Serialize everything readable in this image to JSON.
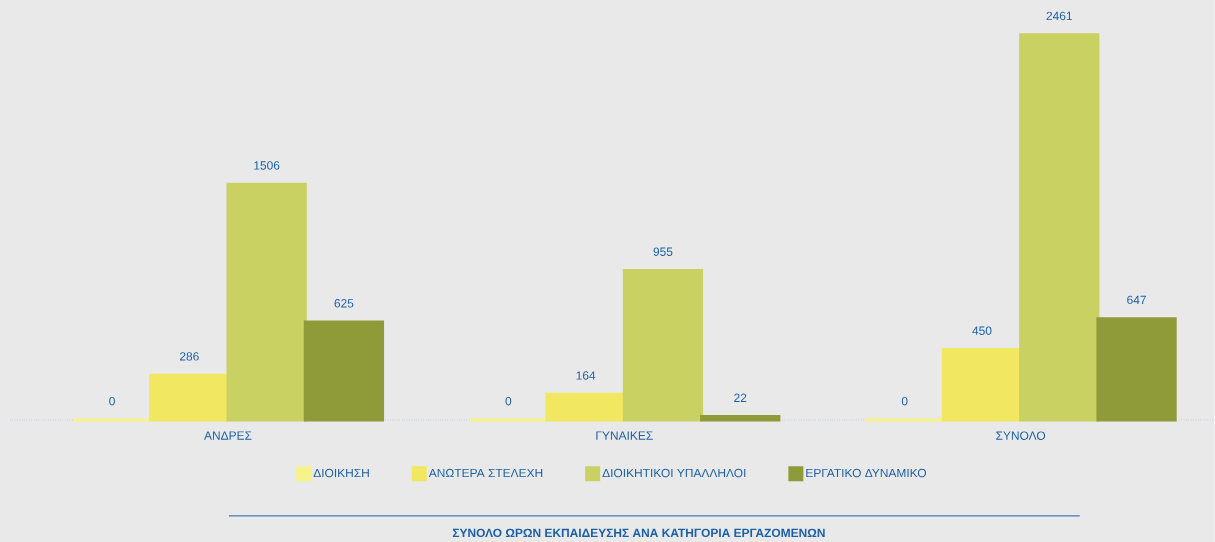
{
  "chart_data": {
    "type": "bar",
    "title": "ΣΥΝΟΛΟ ΩΡΩΝ ΕΚΠΑΙΔΕΥΣΗΣ ΑΝΑ ΚΑΤΗΓΟΡΙΑ ΕΡΓΑΖΟΜΕΝΩΝ",
    "categories": [
      "ΑΝΔΡΕΣ",
      "ΓΥΝΑΙΚΕΣ",
      "ΣΥΝΟΛΟ"
    ],
    "series": [
      {
        "name": "ΔΙΟΙΚΗΣΗ",
        "color": "#f8f28a",
        "values": [
          0,
          0,
          0
        ]
      },
      {
        "name": "ΑΝΩΤΕΡΑ ΣΤΕΛΕΧΗ",
        "color": "#f2e760",
        "values": [
          286,
          164,
          450
        ]
      },
      {
        "name": "ΔΙΟΙΚΗΤΙΚΟΙ ΥΠΑΛΛΗΛΟΙ",
        "color": "#c9d163",
        "values": [
          1506,
          955,
          2461
        ]
      },
      {
        "name": "ΕΡΓΑΤΙΚΟ ΔΥΝΑΜΙΚΟ",
        "color": "#8f9a38",
        "values": [
          625,
          22,
          647
        ]
      }
    ],
    "data_labels": true,
    "legend": "bottom"
  }
}
